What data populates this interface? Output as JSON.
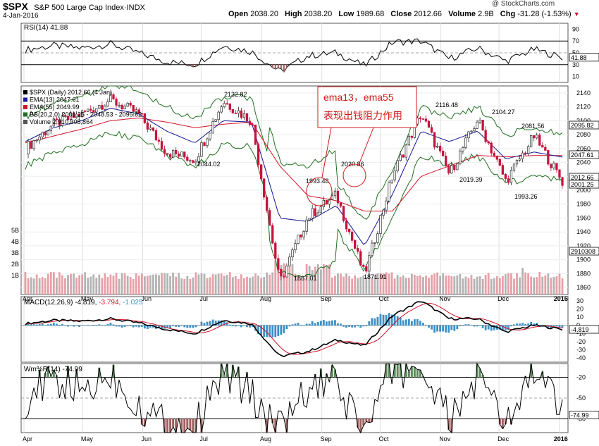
{
  "header": {
    "symbol": "$SPX",
    "name": "S&P 500 Large Cap Index",
    "exchange": "INDX",
    "date": "4-Jan-2016",
    "open_label": "Open",
    "open": "2038.20",
    "high_label": "High",
    "high": "2038.20",
    "low_label": "Low",
    "low": "1989.68",
    "close_label": "Close",
    "close": "2012.66",
    "volume_label": "Volume",
    "volume": "2.9B",
    "chg_label": "Chg",
    "chg": "-31.28 (-1.53%)",
    "watermark": "@ StockCharts.com"
  },
  "colors": {
    "up": "#2a2a2a",
    "down": "#c4143c",
    "ema13": "#1a1a9a",
    "ema55": "#d2142a",
    "bb": "#1f6e1f",
    "vol_up": "#b4b4b4",
    "vol_down": "#e8a0a8",
    "macd_hist": "#3d8fc4",
    "green_fill": "#5e8a5e",
    "red_fill": "#a06060",
    "annotation": "#d01818"
  },
  "x_axis": {
    "months": [
      "Apr",
      "May",
      "Jun",
      "Jul",
      "Aug",
      "Sep",
      "Oct",
      "Nov",
      "Dec",
      "2016"
    ]
  },
  "rsi_panel": {
    "label": "RSI(14) 41.88",
    "yticks": [
      "90",
      "70",
      "50",
      "30",
      "10"
    ],
    "current_badge": "41.88",
    "overbought": 70,
    "oversold": 30
  },
  "price_panel": {
    "legend": [
      "$SPX (Daily) 2012.66 (4 Jan)",
      "EMA(13) 2047.61",
      "EMA(55) 2049.99",
      "BB(20,2.0) 2001.25 - 2048.53 - 2095.82",
      "Volume 2,910,308,864"
    ],
    "yticks": [
      "2140",
      "2120",
      "2100",
      "2080",
      "2060",
      "2040",
      "2020",
      "2000",
      "1980",
      "1960",
      "1940",
      "1920",
      "1900",
      "1880",
      "1860"
    ],
    "vol_ticks": [
      "5B",
      "4B",
      "3B",
      "2B",
      "1B"
    ],
    "badges": {
      "bb_upper": "2095.82",
      "ema13": "2047.61",
      "close": "2012.66",
      "bb_lower": "2001.25",
      "volume": "2910308"
    },
    "price_labels": [
      "2132.82",
      "2044.02",
      "1993.48",
      "2020.86",
      "1867.01",
      "1871.91",
      "2116.48",
      "2104.27",
      "2081.56",
      "2019.39",
      "1993.26"
    ],
    "annotation_line1": "ema13，ema55",
    "annotation_line2": "表现出钱阻力作用"
  },
  "macd_panel": {
    "label": "MACD(12,26,9)",
    "values": [
      "-4.819",
      "-3.794",
      "-1.025"
    ],
    "yticks": [
      "30",
      "20",
      "10",
      "0",
      "-10",
      "-20",
      "-30",
      "-40"
    ],
    "current_badge": "-4.819"
  },
  "wr_panel": {
    "label": "Wm%R(14) -74.99",
    "yticks": [
      "-20",
      "-50",
      "-80"
    ],
    "current_badge": "-74.99"
  },
  "chart_data": {
    "type": "candlestick",
    "title": "$SPX S&P 500 Large Cap Index INDX",
    "x_range": [
      "2015-04-01",
      "2016-01-04"
    ],
    "price_ylim": [
      1850,
      2150
    ],
    "rsi_ylim": [
      0,
      100
    ],
    "macd_ylim": [
      -45,
      35
    ],
    "wr_ylim": [
      -100,
      0
    ],
    "series": [
      {
        "name": "$SPX (Daily)",
        "x": [
          "2015-04-01",
          "2015-04-15",
          "2015-05-01",
          "2015-05-20",
          "2015-06-01",
          "2015-06-29",
          "2015-07-08",
          "2015-07-20",
          "2015-08-03",
          "2015-08-24",
          "2015-09-10",
          "2015-09-17",
          "2015-09-29",
          "2015-10-15",
          "2015-11-03",
          "2015-11-13",
          "2015-12-01",
          "2015-12-14",
          "2015-12-29",
          "2016-01-04"
        ],
        "values": [
          2060,
          2095,
          2110,
          2130,
          2110,
          2055,
          2044,
          2128,
          2100,
          1867,
          1962,
          1993,
          1878,
          2023,
          2110,
          2023,
          2102,
          2013,
          2078,
          2012.66
        ]
      },
      {
        "name": "EMA(13)",
        "values": [
          2070,
          2090,
          2100,
          2118,
          2110,
          2085,
          2068,
          2100,
          2098,
          1960,
          1955,
          1978,
          1920,
          1995,
          2085,
          2070,
          2085,
          2045,
          2055,
          2047.61
        ]
      },
      {
        "name": "EMA(55)",
        "values": [
          2068,
          2078,
          2088,
          2100,
          2104,
          2098,
          2090,
          2095,
          2098,
          2035,
          1992,
          1985,
          1970,
          1970,
          2020,
          2035,
          2050,
          2048,
          2050,
          2049.99
        ]
      },
      {
        "name": "RSI(14)",
        "values": [
          55,
          62,
          58,
          65,
          50,
          35,
          30,
          62,
          52,
          18,
          45,
          50,
          28,
          68,
          70,
          40,
          58,
          36,
          56,
          41.88
        ]
      },
      {
        "name": "MACD",
        "values": [
          2,
          6,
          5,
          8,
          3,
          -5,
          -10,
          6,
          2,
          -38,
          -32,
          -18,
          -25,
          12,
          30,
          8,
          8,
          -8,
          0,
          -4.819
        ]
      },
      {
        "name": "Wm%R(14)",
        "values": [
          -50,
          -25,
          -40,
          -15,
          -60,
          -90,
          -95,
          -10,
          -45,
          -100,
          -40,
          -30,
          -100,
          -8,
          -5,
          -85,
          -20,
          -92,
          -10,
          -74.99
        ]
      }
    ]
  }
}
